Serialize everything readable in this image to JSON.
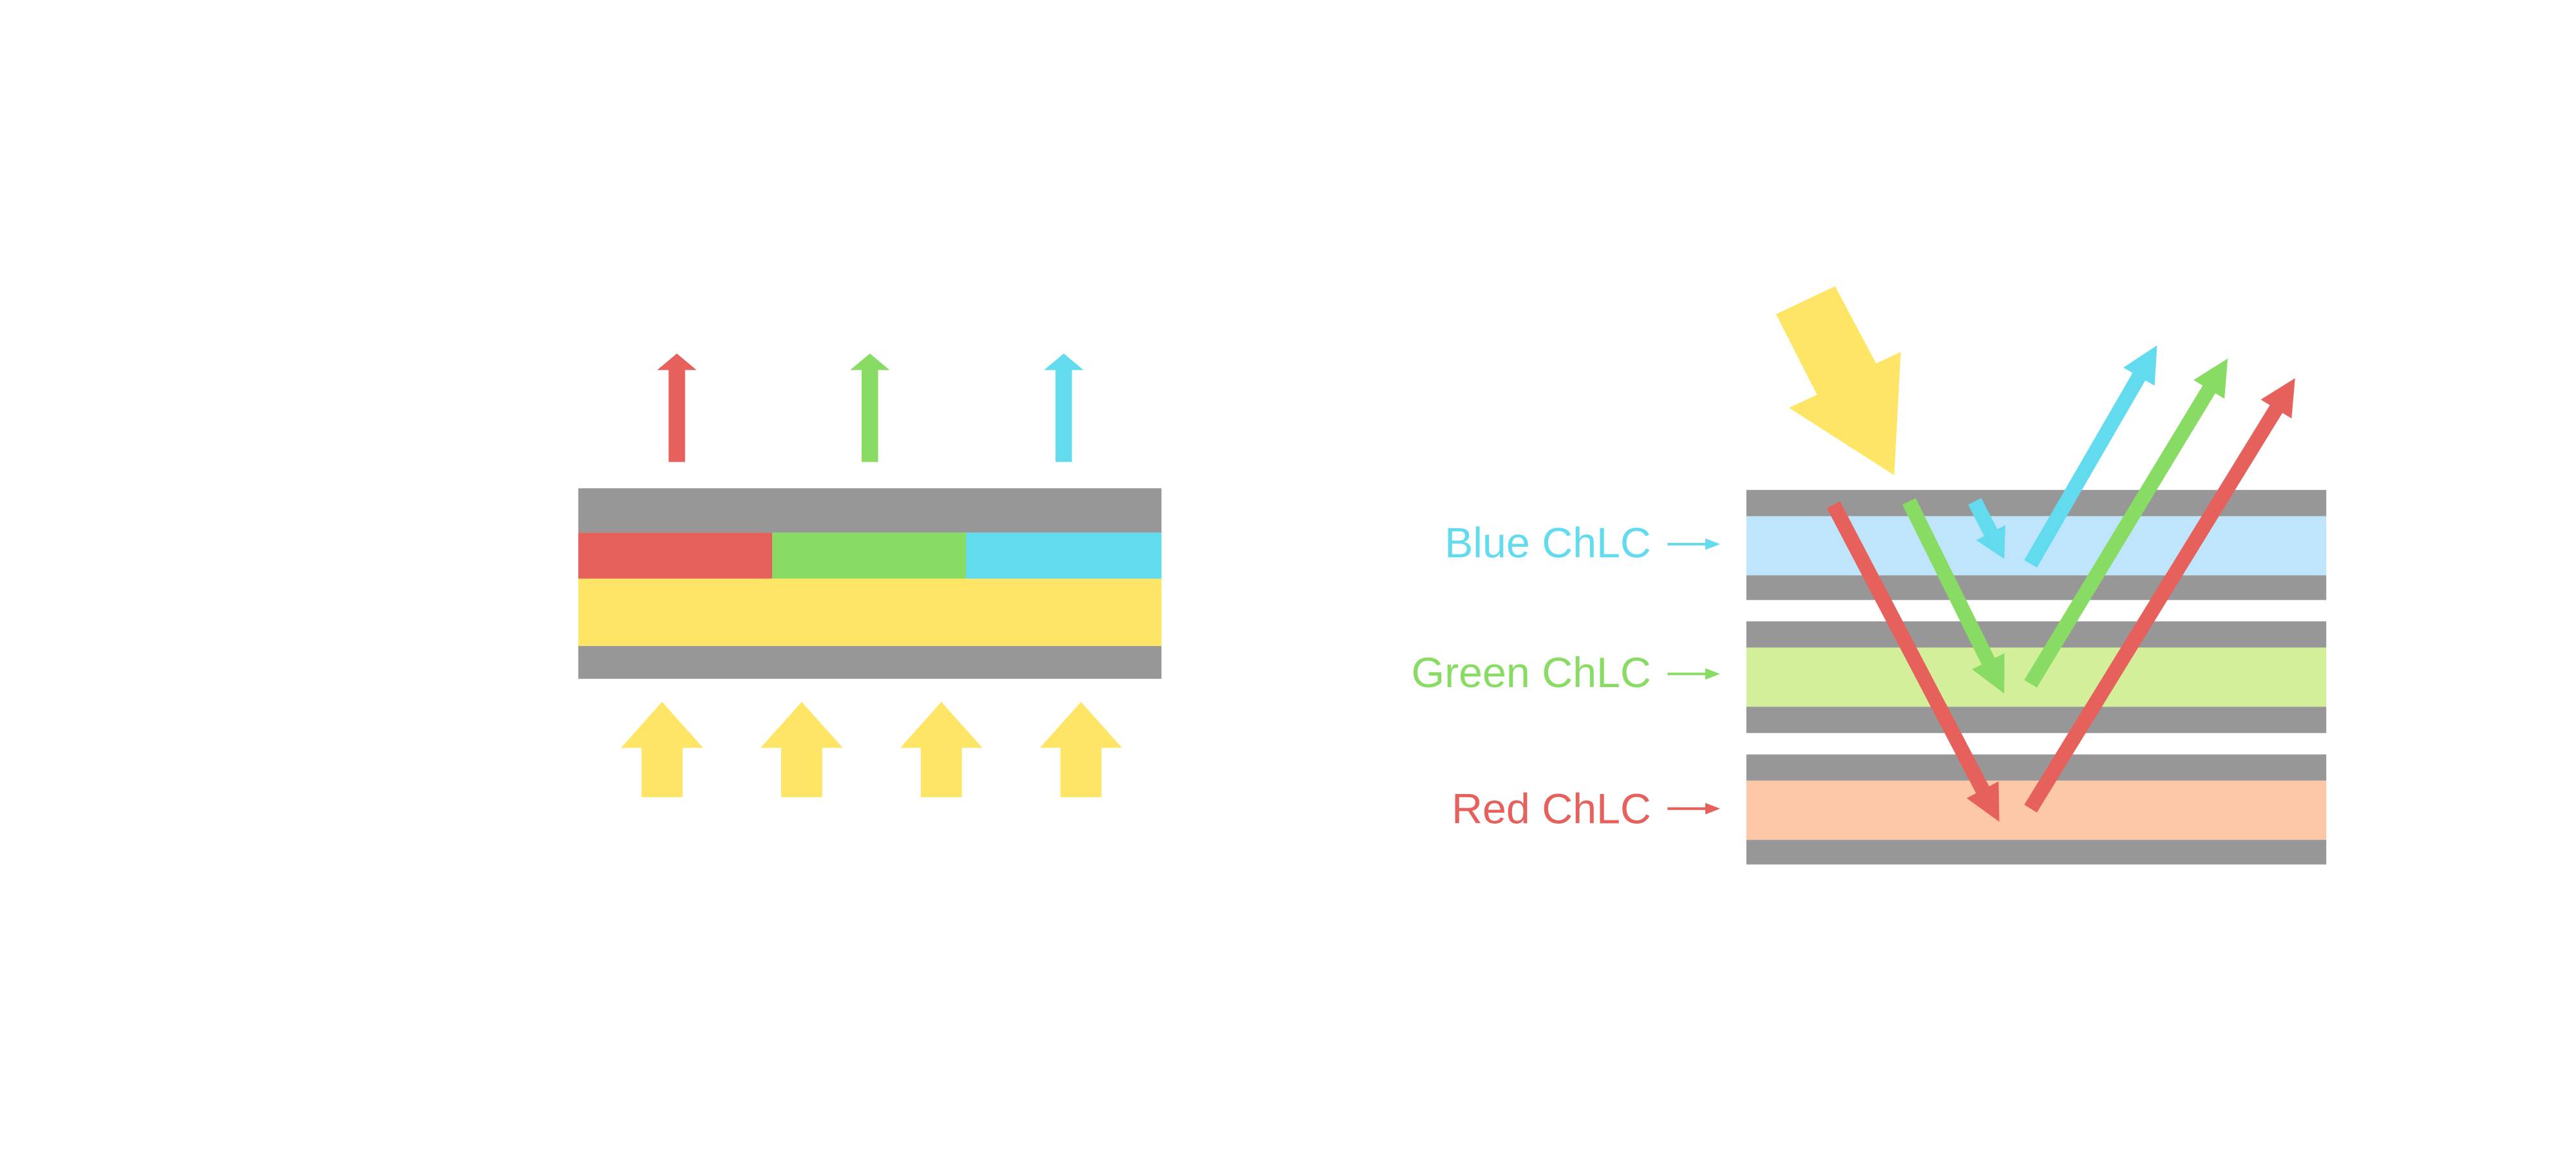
{
  "colors": {
    "substrate": "#979797",
    "red": "#e6605c",
    "green": "#88dc63",
    "blue": "#63dbee",
    "yellow": "#ffe566",
    "blue_layer": "#bfe5fc",
    "green_layer": "#d3ef9a",
    "red_layer": "#fdc8a8"
  },
  "right_diagram": {
    "labels": {
      "blue": "Blue ChLC",
      "green": "Green ChLC",
      "red": "Red ChLC"
    }
  }
}
